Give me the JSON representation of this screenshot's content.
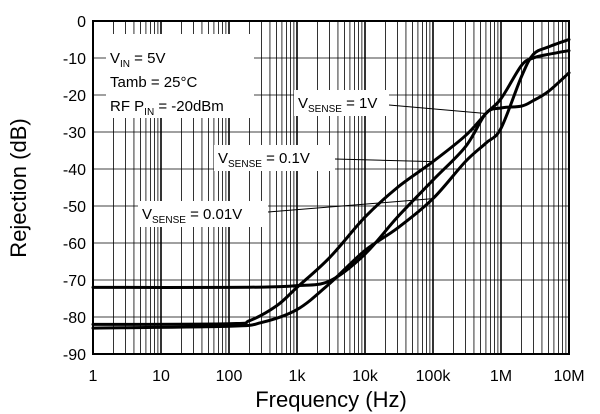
{
  "chart_data": {
    "type": "line",
    "title": "",
    "xlabel": "Frequency (Hz)",
    "ylabel": "Rejection (dB)",
    "xscale": "log",
    "xlim": [
      1,
      10000000
    ],
    "ylim": [
      -90,
      0
    ],
    "grid": true,
    "x_tick_labels": [
      "1",
      "10",
      "100",
      "1k",
      "10k",
      "100k",
      "1M",
      "10M"
    ],
    "y_tick_labels": [
      "0",
      "-10",
      "-20",
      "-30",
      "-40",
      "-50",
      "-60",
      "-70",
      "-80",
      "-90"
    ],
    "conditions": {
      "vin": {
        "main": "V",
        "sub": "IN",
        "rest": " = 5V"
      },
      "tamb": "Tamb = 25°C",
      "rf": {
        "main": "RF P",
        "sub": "IN",
        "rest": " = -20dBm"
      }
    },
    "series": [
      {
        "label": {
          "main": "V",
          "sub": "SENSE",
          "rest": " = 1V"
        },
        "points": [
          [
            1,
            -72
          ],
          [
            100,
            -72
          ],
          [
            500,
            -71.8
          ],
          [
            1000,
            -71.5
          ],
          [
            3000,
            -70.3
          ],
          [
            10000,
            -63
          ],
          [
            30000,
            -53
          ],
          [
            100000,
            -43
          ],
          [
            300000,
            -34
          ],
          [
            600000,
            -25
          ],
          [
            1000000,
            -23.5
          ],
          [
            2000000,
            -23
          ],
          [
            3000000,
            -21.5
          ],
          [
            5000000,
            -19
          ],
          [
            10000000,
            -14
          ]
        ]
      },
      {
        "label": {
          "main": "V",
          "sub": "SENSE",
          "rest": " = 0.1V"
        },
        "points": [
          [
            1,
            -82
          ],
          [
            100,
            -81.8
          ],
          [
            200,
            -81
          ],
          [
            500,
            -77
          ],
          [
            1000,
            -72
          ],
          [
            3000,
            -64
          ],
          [
            10000,
            -53
          ],
          [
            30000,
            -45
          ],
          [
            100000,
            -38
          ],
          [
            300000,
            -31
          ],
          [
            600000,
            -25
          ],
          [
            1000000,
            -21
          ],
          [
            2000000,
            -12
          ],
          [
            3000000,
            -10
          ],
          [
            5000000,
            -9
          ],
          [
            10000000,
            -8
          ]
        ]
      },
      {
        "label": {
          "main": "V",
          "sub": "SENSE",
          "rest": " = 0.01V"
        },
        "points": [
          [
            1,
            -83
          ],
          [
            100,
            -82.5
          ],
          [
            300,
            -81.5
          ],
          [
            1000,
            -78
          ],
          [
            3000,
            -71
          ],
          [
            10000,
            -62
          ],
          [
            30000,
            -56
          ],
          [
            100000,
            -48
          ],
          [
            300000,
            -38
          ],
          [
            600000,
            -33
          ],
          [
            1000000,
            -29
          ],
          [
            2000000,
            -15
          ],
          [
            3000000,
            -9
          ],
          [
            5000000,
            -7
          ],
          [
            10000000,
            -5
          ]
        ]
      }
    ]
  }
}
